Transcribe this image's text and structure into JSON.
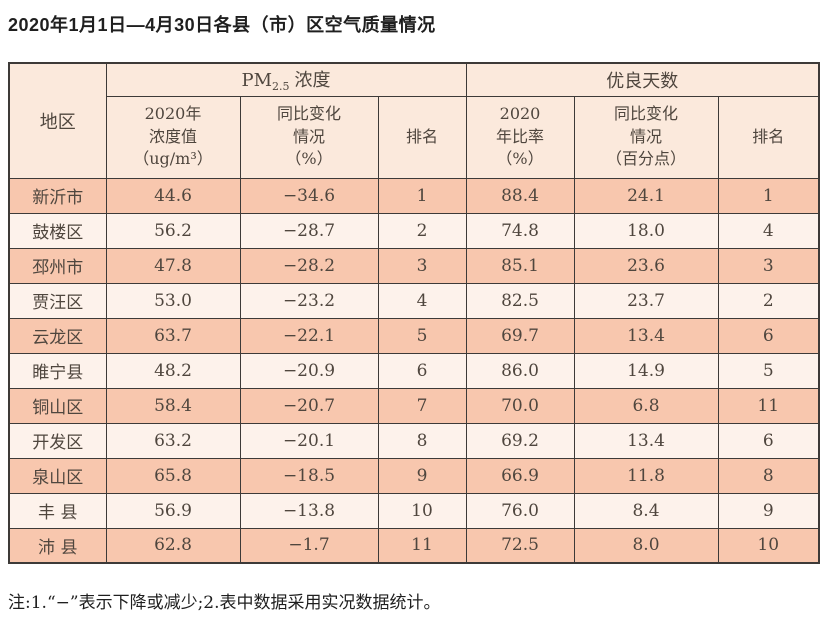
{
  "page": {
    "title": "2020年1月1日—4月30日各县（市）区空气质量情况",
    "note": "注:1.“−”表示下降或减少;2.表中数据采用实况数据统计。"
  },
  "table": {
    "header": {
      "region": "地区",
      "pm_group_prefix": "PM",
      "pm_group_sub": "2.5",
      "pm_group_suffix": "浓度",
      "good_days_group": "优良天数",
      "pm_value": "2020年\n浓度值\n（ug/m³）",
      "pm_change": "同比变化\n情况\n（%）",
      "pm_rank": "排名",
      "gd_ratio": "2020\n年比率\n（%）",
      "gd_change": "同比变化\n情况\n（百分点）",
      "gd_rank": "排名"
    },
    "rows": [
      {
        "region": "新沂市",
        "pm_value": "44.6",
        "pm_change": "−34.6",
        "pm_rank": "1",
        "gd_ratio": "88.4",
        "gd_change": "24.1",
        "gd_rank": "1"
      },
      {
        "region": "鼓楼区",
        "pm_value": "56.2",
        "pm_change": "−28.7",
        "pm_rank": "2",
        "gd_ratio": "74.8",
        "gd_change": "18.0",
        "gd_rank": "4"
      },
      {
        "region": "邳州市",
        "pm_value": "47.8",
        "pm_change": "−28.2",
        "pm_rank": "3",
        "gd_ratio": "85.1",
        "gd_change": "23.6",
        "gd_rank": "3"
      },
      {
        "region": "贾汪区",
        "pm_value": "53.0",
        "pm_change": "−23.2",
        "pm_rank": "4",
        "gd_ratio": "82.5",
        "gd_change": "23.7",
        "gd_rank": "2"
      },
      {
        "region": "云龙区",
        "pm_value": "63.7",
        "pm_change": "−22.1",
        "pm_rank": "5",
        "gd_ratio": "69.7",
        "gd_change": "13.4",
        "gd_rank": "6"
      },
      {
        "region": "睢宁县",
        "pm_value": "48.2",
        "pm_change": "−20.9",
        "pm_rank": "6",
        "gd_ratio": "86.0",
        "gd_change": "14.9",
        "gd_rank": "5"
      },
      {
        "region": "铜山区",
        "pm_value": "58.4",
        "pm_change": "−20.7",
        "pm_rank": "7",
        "gd_ratio": "70.0",
        "gd_change": "6.8",
        "gd_rank": "11"
      },
      {
        "region": "开发区",
        "pm_value": "63.2",
        "pm_change": "−20.1",
        "pm_rank": "8",
        "gd_ratio": "69.2",
        "gd_change": "13.4",
        "gd_rank": "6"
      },
      {
        "region": "泉山区",
        "pm_value": "65.8",
        "pm_change": "−18.5",
        "pm_rank": "9",
        "gd_ratio": "66.9",
        "gd_change": "11.8",
        "gd_rank": "8"
      },
      {
        "region": "丰 县",
        "pm_value": "56.9",
        "pm_change": "−13.8",
        "pm_rank": "10",
        "gd_ratio": "76.0",
        "gd_change": "8.4",
        "gd_rank": "9"
      },
      {
        "region": "沛 县",
        "pm_value": "62.8",
        "pm_change": "−1.7",
        "pm_rank": "11",
        "gd_ratio": "72.5",
        "gd_change": "8.0",
        "gd_rank": "10"
      }
    ]
  },
  "colors": {
    "row_odd": "#f8c7ae",
    "row_even": "#fdf2eb",
    "header_bg": "#fbe9dc",
    "border": "#3d3a38",
    "text": "#4f463e",
    "title_text": "#1f1f1f"
  },
  "chart_data": {
    "type": "table",
    "title": "2020年1月1日—4月30日各县（市）区空气质量情况",
    "column_groups": [
      "地区",
      "PM2.5浓度",
      "优良天数"
    ],
    "columns": [
      "地区",
      "PM2.5浓度 2020年浓度值（ug/m³）",
      "PM2.5浓度 同比变化情况（%）",
      "PM2.5浓度 排名",
      "优良天数 2020年比率（%）",
      "优良天数 同比变化情况（百分点）",
      "优良天数 排名"
    ],
    "rows": [
      [
        "新沂市",
        44.6,
        -34.6,
        1,
        88.4,
        24.1,
        1
      ],
      [
        "鼓楼区",
        56.2,
        -28.7,
        2,
        74.8,
        18.0,
        4
      ],
      [
        "邳州市",
        47.8,
        -28.2,
        3,
        85.1,
        23.6,
        3
      ],
      [
        "贾汪区",
        53.0,
        -23.2,
        4,
        82.5,
        23.7,
        2
      ],
      [
        "云龙区",
        63.7,
        -22.1,
        5,
        69.7,
        13.4,
        6
      ],
      [
        "睢宁县",
        48.2,
        -20.9,
        6,
        86.0,
        14.9,
        5
      ],
      [
        "铜山区",
        58.4,
        -20.7,
        7,
        70.0,
        6.8,
        11
      ],
      [
        "开发区",
        63.2,
        -20.1,
        8,
        69.2,
        13.4,
        6
      ],
      [
        "泉山区",
        65.8,
        -18.5,
        9,
        66.9,
        11.8,
        8
      ],
      [
        "丰县",
        56.9,
        -13.8,
        10,
        76.0,
        8.4,
        9
      ],
      [
        "沛县",
        62.8,
        -1.7,
        11,
        72.5,
        8.0,
        10
      ]
    ],
    "note": "注:1.“−”表示下降或减少;2.表中数据采用实况数据统计。"
  }
}
